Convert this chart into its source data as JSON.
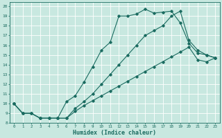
{
  "xlabel": "Humidex (Indice chaleur)",
  "xlim": [
    0,
    23
  ],
  "ylim": [
    8,
    20
  ],
  "xticks": [
    0,
    1,
    2,
    3,
    4,
    5,
    6,
    7,
    8,
    9,
    10,
    11,
    12,
    13,
    14,
    15,
    16,
    17,
    18,
    19,
    20,
    21,
    22,
    23
  ],
  "yticks": [
    8,
    9,
    10,
    11,
    12,
    13,
    14,
    15,
    16,
    17,
    18,
    19,
    20
  ],
  "bg_color": "#c8e8e0",
  "grid_color": "#ffffff",
  "line_color": "#1a6b60",
  "line1_x": [
    0,
    1,
    2,
    3,
    4,
    5,
    6,
    7,
    8,
    9,
    10,
    11,
    12,
    13,
    14,
    15,
    16,
    17,
    18,
    19,
    20,
    21,
    22,
    23
  ],
  "line1_y": [
    10,
    9,
    9,
    8.5,
    8.5,
    8.5,
    10.2,
    10.8,
    12.2,
    13.8,
    15.5,
    16.3,
    19.0,
    19.0,
    19.2,
    19.7,
    19.3,
    19.4,
    19.5,
    18.3,
    16.2,
    15.2,
    15.0,
    14.7
  ],
  "line2_x": [
    0,
    1,
    2,
    3,
    4,
    5,
    6,
    7,
    8,
    9,
    10,
    11,
    12,
    13,
    14,
    15,
    16,
    17,
    18,
    19,
    20,
    21,
    22,
    23
  ],
  "line2_y": [
    10,
    9,
    9,
    8.5,
    8.5,
    8.5,
    8.5,
    9.5,
    10.2,
    11.0,
    12.0,
    13.0,
    14.0,
    15.0,
    16.0,
    17.0,
    17.5,
    18.0,
    19.0,
    19.5,
    16.5,
    15.5,
    15.0,
    14.7
  ],
  "line3_x": [
    0,
    1,
    2,
    3,
    4,
    5,
    6,
    7,
    8,
    9,
    10,
    11,
    12,
    13,
    14,
    15,
    16,
    17,
    18,
    19,
    20,
    21,
    22,
    23
  ],
  "line3_y": [
    10,
    9,
    9,
    8.5,
    8.5,
    8.5,
    8.5,
    9.2,
    9.8,
    10.3,
    10.8,
    11.3,
    11.8,
    12.3,
    12.8,
    13.3,
    13.8,
    14.3,
    14.8,
    15.3,
    15.8,
    14.5,
    14.3,
    14.7
  ]
}
